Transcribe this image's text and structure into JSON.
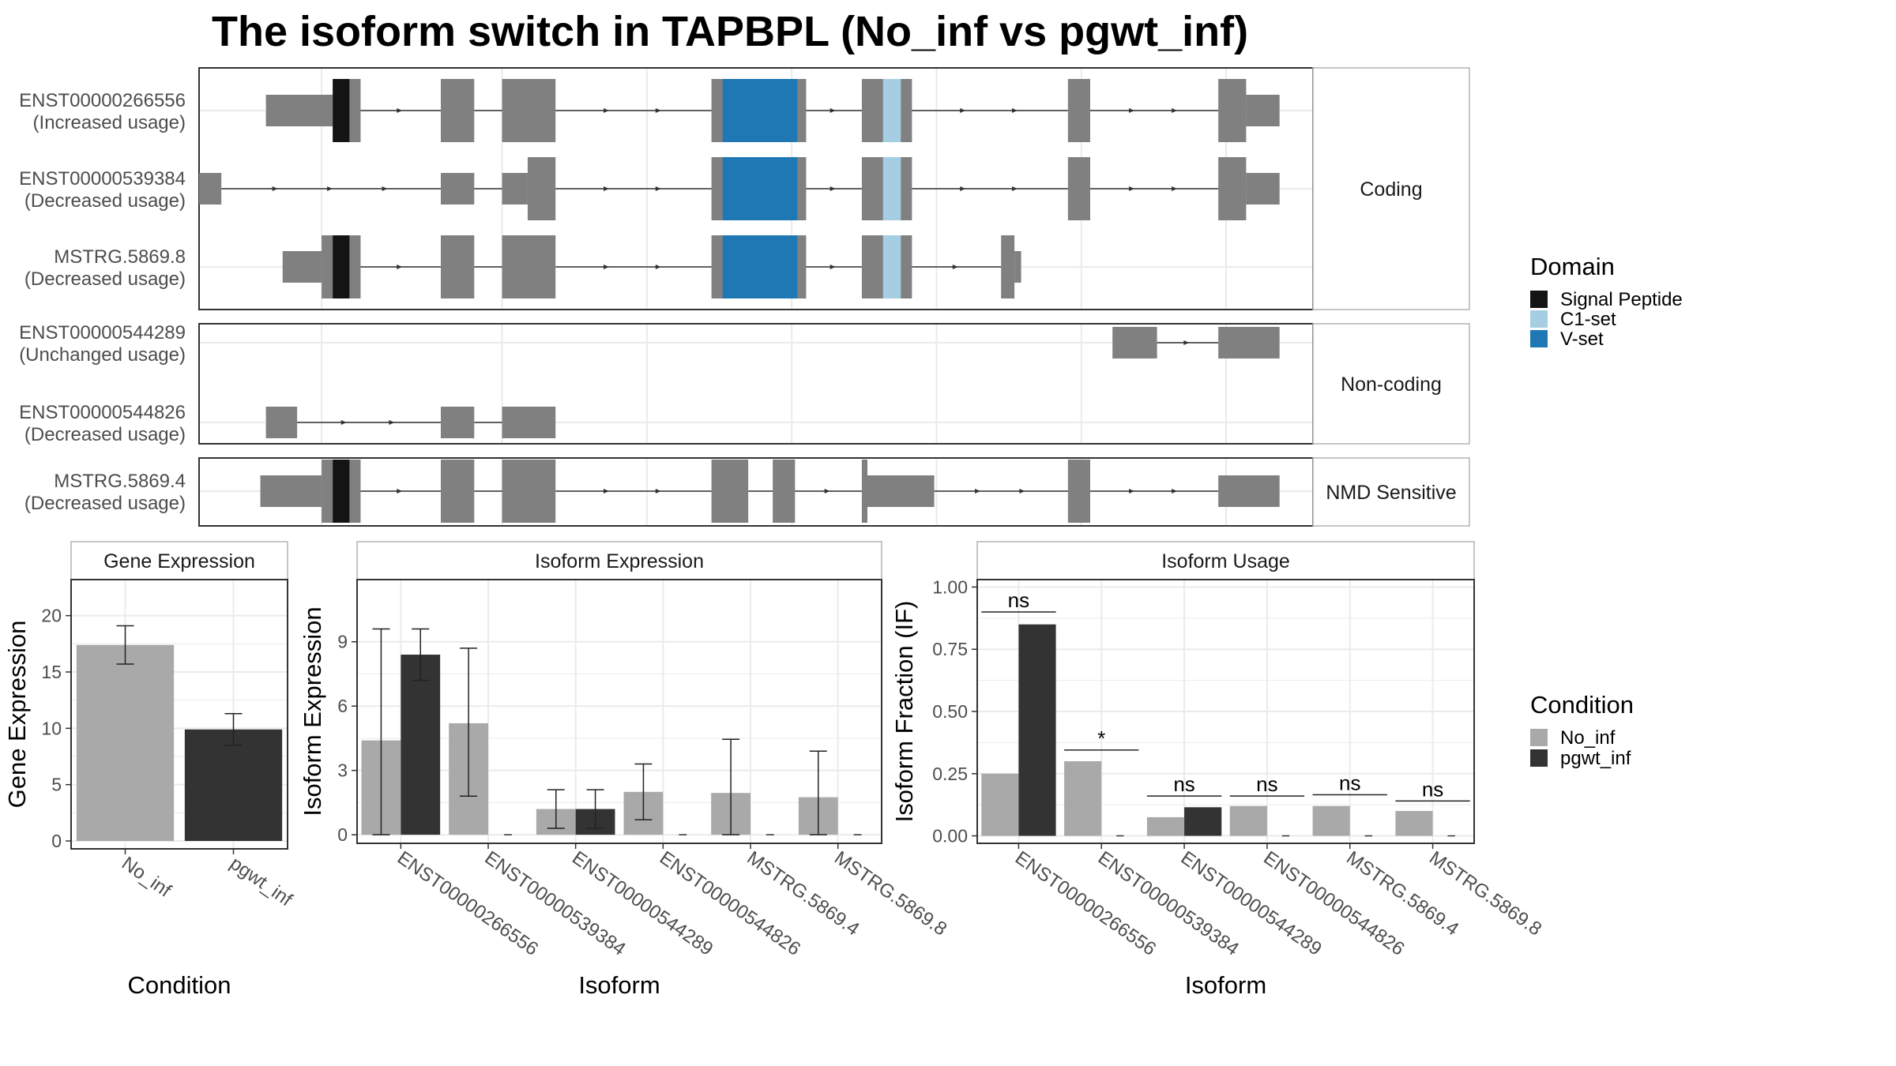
{
  "title": "The isoform switch in TAPBPL (No_inf vs pgwt_inf)",
  "colors": {
    "exon": "#808080",
    "Signal Peptide": "#141414",
    "C1-set": "#a6cee3",
    "V-set": "#1f78b4",
    "No_inf": "#a9a9a9",
    "pgwt_inf": "#333333",
    "panel_border": "#333333",
    "strip_border": "#b3b3b3",
    "grid": "#ebebeb"
  },
  "chart_data": [
    {
      "type": "isoform_structure",
      "coord_range": [
        0,
        1000
      ],
      "groups": [
        {
          "label": "Coding",
          "isoforms": [
            {
              "id": "ENST00000266556",
              "usage": "(Increased usage)",
              "exons": [
                [
                  60,
                  120,
                  "thin"
                ],
                [
                  120,
                  145,
                  "thick"
                ],
                [
                  217,
                  247,
                  "thick"
                ],
                [
                  272,
                  320,
                  "thick"
                ],
                [
                  460,
                  545,
                  "thick"
                ],
                [
                  595,
                  640,
                  "thick"
                ],
                [
                  780,
                  800,
                  "thick"
                ],
                [
                  915,
                  940,
                  "thick"
                ],
                [
                  940,
                  970,
                  "thin"
                ]
              ],
              "domains": [
                [
                  120,
                  135,
                  "Signal Peptide"
                ],
                [
                  470,
                  537,
                  "V-set"
                ],
                [
                  614,
                  630,
                  "C1-set"
                ]
              ]
            },
            {
              "id": "ENST00000539384",
              "usage": "(Decreased usage)",
              "exons": [
                [
                  0,
                  20,
                  "thin"
                ],
                [
                  217,
                  247,
                  "thin"
                ],
                [
                  272,
                  295,
                  "thin"
                ],
                [
                  295,
                  320,
                  "thick"
                ],
                [
                  460,
                  545,
                  "thick"
                ],
                [
                  595,
                  640,
                  "thick"
                ],
                [
                  780,
                  800,
                  "thick"
                ],
                [
                  915,
                  940,
                  "thick"
                ],
                [
                  940,
                  970,
                  "thin"
                ]
              ],
              "domains": [
                [
                  470,
                  537,
                  "V-set"
                ],
                [
                  614,
                  630,
                  "C1-set"
                ]
              ]
            },
            {
              "id": "MSTRG.5869.8",
              "usage": "(Decreased usage)",
              "exons": [
                [
                  75,
                  110,
                  "thin"
                ],
                [
                  110,
                  145,
                  "thick"
                ],
                [
                  217,
                  247,
                  "thick"
                ],
                [
                  272,
                  320,
                  "thick"
                ],
                [
                  460,
                  545,
                  "thick"
                ],
                [
                  595,
                  640,
                  "thick"
                ],
                [
                  720,
                  732,
                  "thick"
                ],
                [
                  732,
                  738,
                  "thin"
                ]
              ],
              "domains": [
                [
                  120,
                  135,
                  "Signal Peptide"
                ],
                [
                  470,
                  537,
                  "V-set"
                ],
                [
                  614,
                  630,
                  "C1-set"
                ]
              ]
            }
          ]
        },
        {
          "label": "Non-coding",
          "isoforms": [
            {
              "id": "ENST00000544289",
              "usage": "(Unchanged usage)",
              "exons": [
                [
                  820,
                  860,
                  "thin"
                ],
                [
                  915,
                  970,
                  "thin"
                ]
              ],
              "domains": []
            },
            {
              "id": "ENST00000544826",
              "usage": "(Decreased usage)",
              "exons": [
                [
                  60,
                  88,
                  "thin"
                ],
                [
                  217,
                  247,
                  "thin"
                ],
                [
                  272,
                  320,
                  "thin"
                ]
              ],
              "domains": []
            }
          ]
        },
        {
          "label": "NMD Sensitive",
          "isoforms": [
            {
              "id": "MSTRG.5869.4",
              "usage": "(Decreased usage)",
              "exons": [
                [
                  55,
                  110,
                  "thin"
                ],
                [
                  110,
                  145,
                  "thick"
                ],
                [
                  217,
                  247,
                  "thick"
                ],
                [
                  272,
                  320,
                  "thick"
                ],
                [
                  460,
                  493,
                  "thick"
                ],
                [
                  515,
                  535,
                  "thick"
                ],
                [
                  595,
                  600,
                  "thick"
                ],
                [
                  600,
                  660,
                  "thin"
                ],
                [
                  780,
                  800,
                  "thick"
                ],
                [
                  915,
                  970,
                  "thin"
                ]
              ],
              "domains": [
                [
                  120,
                  135,
                  "Signal Peptide"
                ]
              ]
            }
          ]
        }
      ],
      "legend": {
        "title": "Domain",
        "entries": [
          "Signal Peptide",
          "C1-set",
          "V-set"
        ]
      }
    },
    {
      "type": "bar",
      "title": "Gene Expression",
      "xlabel": "Condition",
      "ylabel": "Gene Expression",
      "categories": [
        "No_inf",
        "pgwt_inf"
      ],
      "values": [
        17.4,
        9.9
      ],
      "err_low": [
        15.7,
        8.5
      ],
      "err_high": [
        19.1,
        11.3
      ],
      "ylim": [
        -0.7,
        23.2
      ],
      "yticks": [
        0,
        5,
        10,
        15,
        20
      ]
    },
    {
      "type": "bar",
      "title": "Isoform Expression",
      "xlabel": "Isoform",
      "ylabel": "Isoform Expression",
      "categories": [
        "ENST00000266556",
        "ENST00000539384",
        "ENST00000544289",
        "ENST00000544826",
        "MSTRG.5869.4",
        "MSTRG.5869.8"
      ],
      "series": [
        {
          "name": "No_inf",
          "values": [
            4.4,
            5.2,
            1.2,
            2.0,
            1.95,
            1.75
          ],
          "err_low": [
            0,
            1.8,
            0.3,
            0.7,
            0,
            0
          ],
          "err_high": [
            9.6,
            8.7,
            2.1,
            3.3,
            4.45,
            3.9
          ]
        },
        {
          "name": "pgwt_inf",
          "values": [
            8.4,
            0,
            1.2,
            0,
            0,
            0
          ],
          "err_low": [
            7.2,
            0,
            0.3,
            0,
            0,
            0
          ],
          "err_high": [
            9.6,
            0,
            2.1,
            0,
            0,
            0
          ]
        }
      ],
      "ylim": [
        -0.4,
        11.9
      ],
      "yticks": [
        0,
        3,
        6,
        9
      ]
    },
    {
      "type": "bar",
      "title": "Isoform Usage",
      "xlabel": "Isoform",
      "ylabel": "Isoform Fraction (IF)",
      "categories": [
        "ENST00000266556",
        "ENST00000539384",
        "ENST00000544289",
        "ENST00000544826",
        "MSTRG.5869.4",
        "MSTRG.5869.8"
      ],
      "series": [
        {
          "name": "No_inf",
          "values": [
            0.25,
            0.3,
            0.075,
            0.12,
            0.12,
            0.1
          ]
        },
        {
          "name": "pgwt_inf",
          "values": [
            0.85,
            0,
            0.115,
            0,
            0,
            0
          ]
        }
      ],
      "significance": [
        {
          "label": "ns",
          "y": 0.9
        },
        {
          "label": "*",
          "y": 0.345
        },
        {
          "label": "ns",
          "y": 0.16
        },
        {
          "label": "ns",
          "y": 0.16
        },
        {
          "label": "ns",
          "y": 0.165
        },
        {
          "label": "ns",
          "y": 0.14
        }
      ],
      "ylim": [
        -0.03,
        1.03
      ],
      "yticks": [
        0.0,
        0.25,
        0.5,
        0.75,
        1.0
      ],
      "ytick_labels": [
        "0.00",
        "0.25",
        "0.50",
        "0.75",
        "1.00"
      ]
    }
  ],
  "legend_condition": {
    "title": "Condition",
    "entries": [
      "No_inf",
      "pgwt_inf"
    ]
  }
}
